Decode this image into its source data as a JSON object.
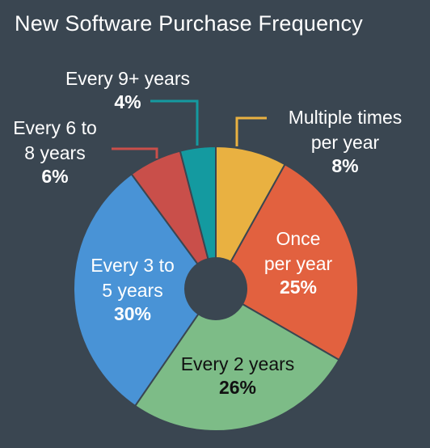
{
  "chart_data": {
    "type": "pie",
    "donut": true,
    "title": "New Software Purchase Frequency",
    "slices": [
      {
        "label_lines": [
          "Multiple times",
          "per year"
        ],
        "pct_label": "8%",
        "value": 8,
        "color": "#e9b141"
      },
      {
        "label_lines": [
          "Once",
          "per year"
        ],
        "pct_label": "25%",
        "value": 25,
        "color": "#e2613f"
      },
      {
        "label_lines": [
          "Every 2 years"
        ],
        "pct_label": "26%",
        "value": 26,
        "color": "#7dbc87"
      },
      {
        "label_lines": [
          "Every 3 to",
          "5 years"
        ],
        "pct_label": "30%",
        "value": 30,
        "color": "#4993d6"
      },
      {
        "label_lines": [
          "Every 6 to",
          "8 years"
        ],
        "pct_label": "6%",
        "value": 6,
        "color": "#c94f4a"
      },
      {
        "label_lines": [
          "Every 9+ years"
        ],
        "pct_label": "4%",
        "value": 4,
        "color": "#149aa0"
      }
    ]
  }
}
